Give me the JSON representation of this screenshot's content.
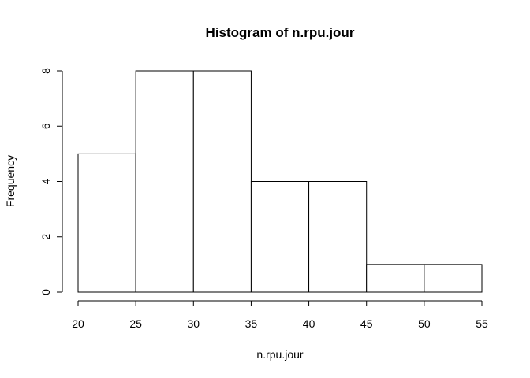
{
  "chart_data": {
    "type": "bar",
    "title": "Histogram of n.rpu.jour",
    "xlabel": "n.rpu.jour",
    "ylabel": "Frequency",
    "bins": [
      {
        "from": 20,
        "to": 25,
        "count": 5
      },
      {
        "from": 25,
        "to": 30,
        "count": 8
      },
      {
        "from": 30,
        "to": 35,
        "count": 8
      },
      {
        "from": 35,
        "to": 40,
        "count": 4
      },
      {
        "from": 40,
        "to": 45,
        "count": 4
      },
      {
        "from": 45,
        "to": 50,
        "count": 1
      },
      {
        "from": 50,
        "to": 55,
        "count": 1
      }
    ],
    "xlim": [
      20,
      55
    ],
    "ylim": [
      0,
      8
    ],
    "x_ticks": [
      20,
      25,
      30,
      35,
      40,
      45,
      50,
      55
    ],
    "y_ticks": [
      0,
      2,
      4,
      6,
      8
    ],
    "grid": false,
    "legend": "none"
  }
}
